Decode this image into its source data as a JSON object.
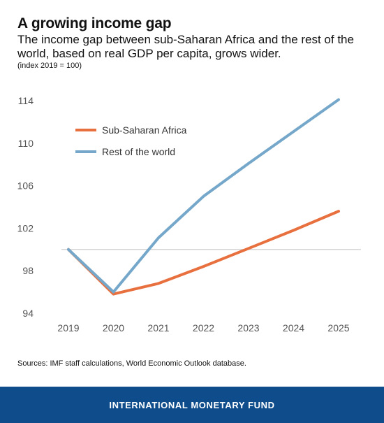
{
  "header": {
    "title": "A growing income gap",
    "subtitle": "The income gap between sub-Saharan Africa and the rest of the world, based on real GDP per capita, grows wider.",
    "unit_note": "(index 2019 = 100)"
  },
  "chart_data": {
    "type": "line",
    "x": [
      "2019",
      "2020",
      "2021",
      "2022",
      "2023",
      "2024",
      "2025"
    ],
    "series": [
      {
        "name": "Sub-Saharan Africa",
        "color": "#e8703f",
        "values": [
          100,
          95.8,
          96.8,
          98.4,
          100.1,
          101.8,
          103.6
        ]
      },
      {
        "name": "Rest of the world",
        "color": "#74a7c9",
        "values": [
          100,
          96.0,
          101.1,
          105.0,
          108.1,
          111.1,
          114.1
        ]
      }
    ],
    "ylim": [
      94,
      114
    ],
    "yticks": [
      "94",
      "98",
      "102",
      "106",
      "110",
      "114"
    ],
    "reference_line": 100,
    "legend_position": "top-left",
    "grid": false
  },
  "footer": {
    "source": "Sources: IMF staff calculations, World Economic Outlook database.",
    "brand": "INTERNATIONAL MONETARY FUND",
    "brand_color": "#0f4c8c"
  }
}
